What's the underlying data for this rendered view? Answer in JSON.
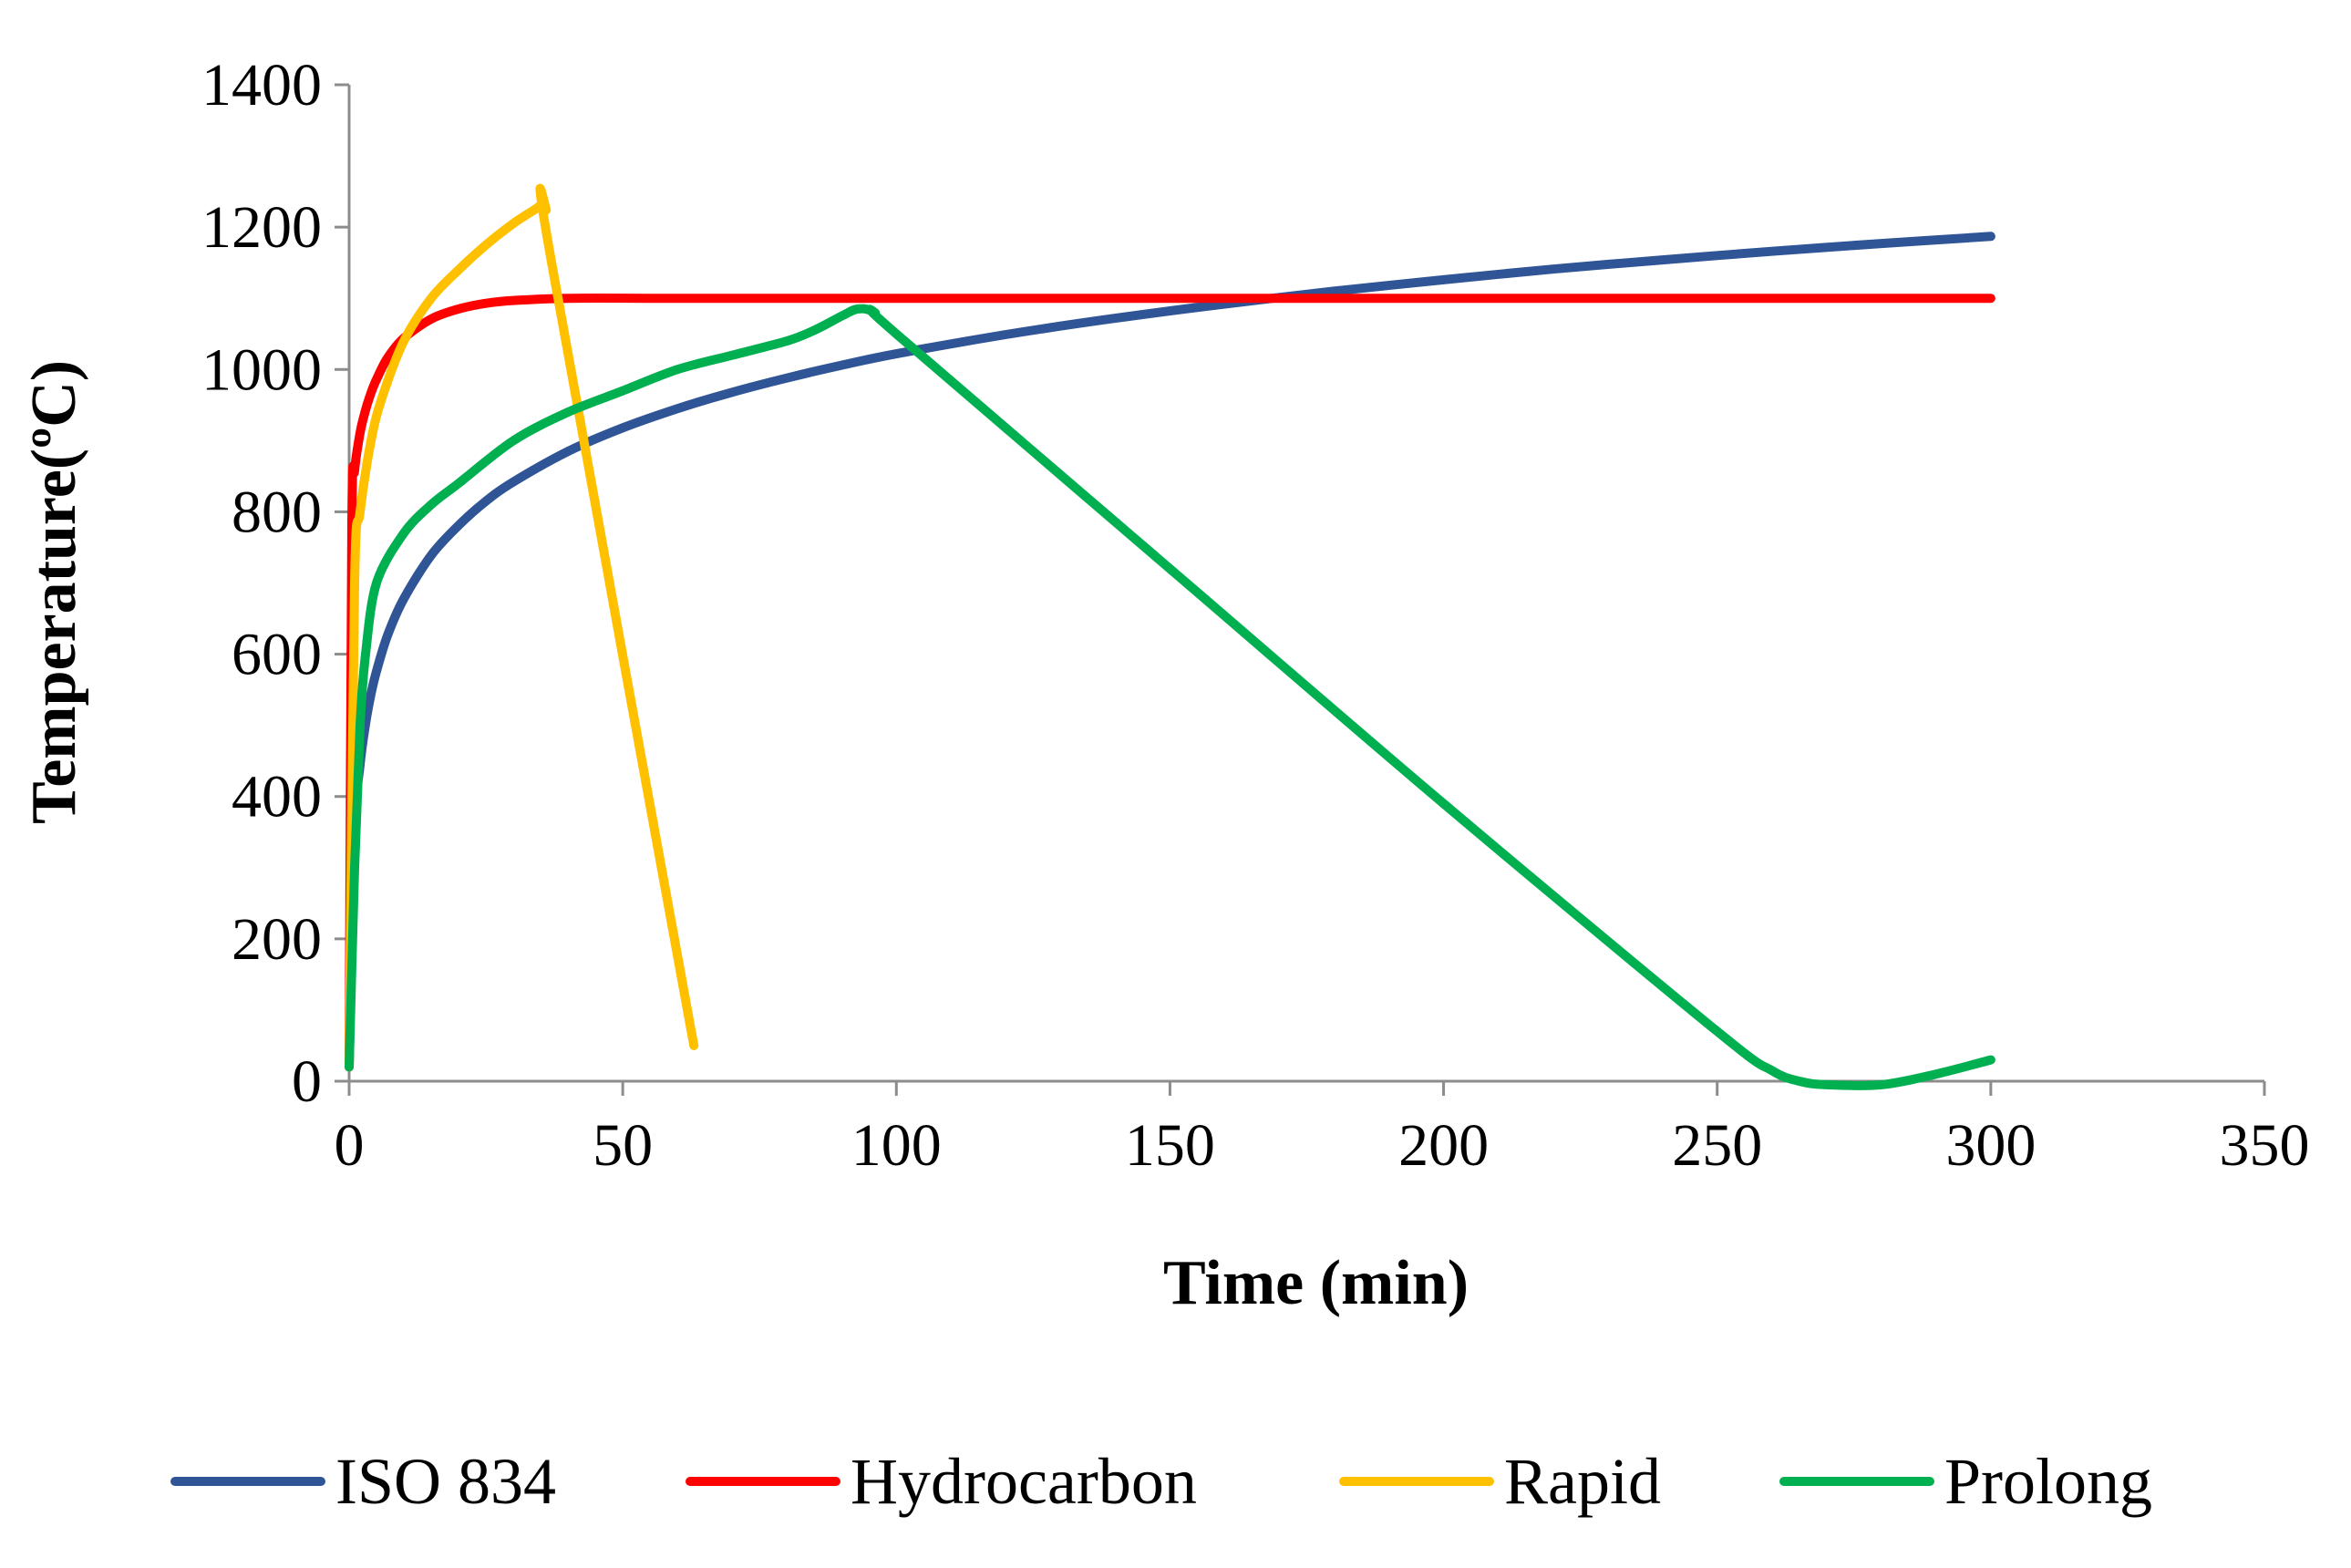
{
  "chart_data": {
    "type": "line",
    "title": "",
    "xlabel": "Time (min)",
    "ylabel": "Temperature(ºC)",
    "xlim": [
      0,
      350
    ],
    "ylim": [
      0,
      1400
    ],
    "xticks": [
      "0",
      "50",
      "100",
      "150",
      "200",
      "250",
      "300",
      "350"
    ],
    "yticks": [
      "0",
      "200",
      "400",
      "600",
      "800",
      "1000",
      "1200",
      "1400"
    ],
    "grid": false,
    "legend_position": "bottom",
    "series": [
      {
        "name": "ISO 834",
        "color": "#2f5597",
        "points": [
          [
            0,
            20
          ],
          [
            1,
            349
          ],
          [
            2,
            445
          ],
          [
            3,
            502
          ],
          [
            4,
            544
          ],
          [
            5,
            576
          ],
          [
            7,
            626
          ],
          [
            10,
            678
          ],
          [
            15,
            739
          ],
          [
            20,
            781
          ],
          [
            25,
            815
          ],
          [
            30,
            842
          ],
          [
            40,
            885
          ],
          [
            50,
            918
          ],
          [
            60,
            945
          ],
          [
            70,
            968
          ],
          [
            80,
            988
          ],
          [
            90,
            1006
          ],
          [
            100,
            1022
          ],
          [
            120,
            1049
          ],
          [
            140,
            1072
          ],
          [
            160,
            1092
          ],
          [
            180,
            1110
          ],
          [
            200,
            1126
          ],
          [
            220,
            1141
          ],
          [
            240,
            1154
          ],
          [
            260,
            1166
          ],
          [
            280,
            1177
          ],
          [
            300,
            1187
          ]
        ]
      },
      {
        "name": "Hydrocarbon",
        "color": "#ff0000",
        "points": [
          [
            0,
            20
          ],
          [
            0.5,
            785
          ],
          [
            1,
            858
          ],
          [
            2,
            911
          ],
          [
            3,
            943
          ],
          [
            4,
            967
          ],
          [
            5,
            986
          ],
          [
            7,
            1016
          ],
          [
            10,
            1044
          ],
          [
            15,
            1071
          ],
          [
            20,
            1085
          ],
          [
            25,
            1093
          ],
          [
            30,
            1097
          ],
          [
            40,
            1100
          ],
          [
            60,
            1100
          ],
          [
            100,
            1100
          ],
          [
            150,
            1100
          ],
          [
            200,
            1100
          ],
          [
            250,
            1100
          ],
          [
            300,
            1100
          ]
        ]
      },
      {
        "name": "Rapid",
        "color": "#ffc000",
        "points": [
          [
            0,
            20
          ],
          [
            1,
            700
          ],
          [
            2,
            800
          ],
          [
            4,
            900
          ],
          [
            6,
            960
          ],
          [
            10,
            1040
          ],
          [
            15,
            1100
          ],
          [
            20,
            1140
          ],
          [
            25,
            1175
          ],
          [
            30,
            1205
          ],
          [
            34,
            1225
          ],
          [
            35,
            1230
          ],
          [
            36,
            1225
          ],
          [
            37,
            1150
          ],
          [
            63,
            50
          ]
        ]
      },
      {
        "name": "Prolong",
        "color": "#00b050",
        "points": [
          [
            0,
            20
          ],
          [
            1,
            300
          ],
          [
            2,
            500
          ],
          [
            3,
            600
          ],
          [
            5,
            700
          ],
          [
            10,
            770
          ],
          [
            15,
            810
          ],
          [
            20,
            840
          ],
          [
            30,
            900
          ],
          [
            40,
            940
          ],
          [
            50,
            970
          ],
          [
            60,
            1000
          ],
          [
            70,
            1020
          ],
          [
            80,
            1040
          ],
          [
            85,
            1055
          ],
          [
            90,
            1075
          ],
          [
            93,
            1085
          ],
          [
            96,
            1080
          ],
          [
            100,
            1050
          ],
          [
            150,
            720
          ],
          [
            200,
            390
          ],
          [
            250,
            70
          ],
          [
            260,
            15
          ],
          [
            265,
            0
          ],
          [
            270,
            -5
          ],
          [
            280,
            -5
          ],
          [
            290,
            10
          ],
          [
            300,
            30
          ]
        ]
      }
    ]
  }
}
